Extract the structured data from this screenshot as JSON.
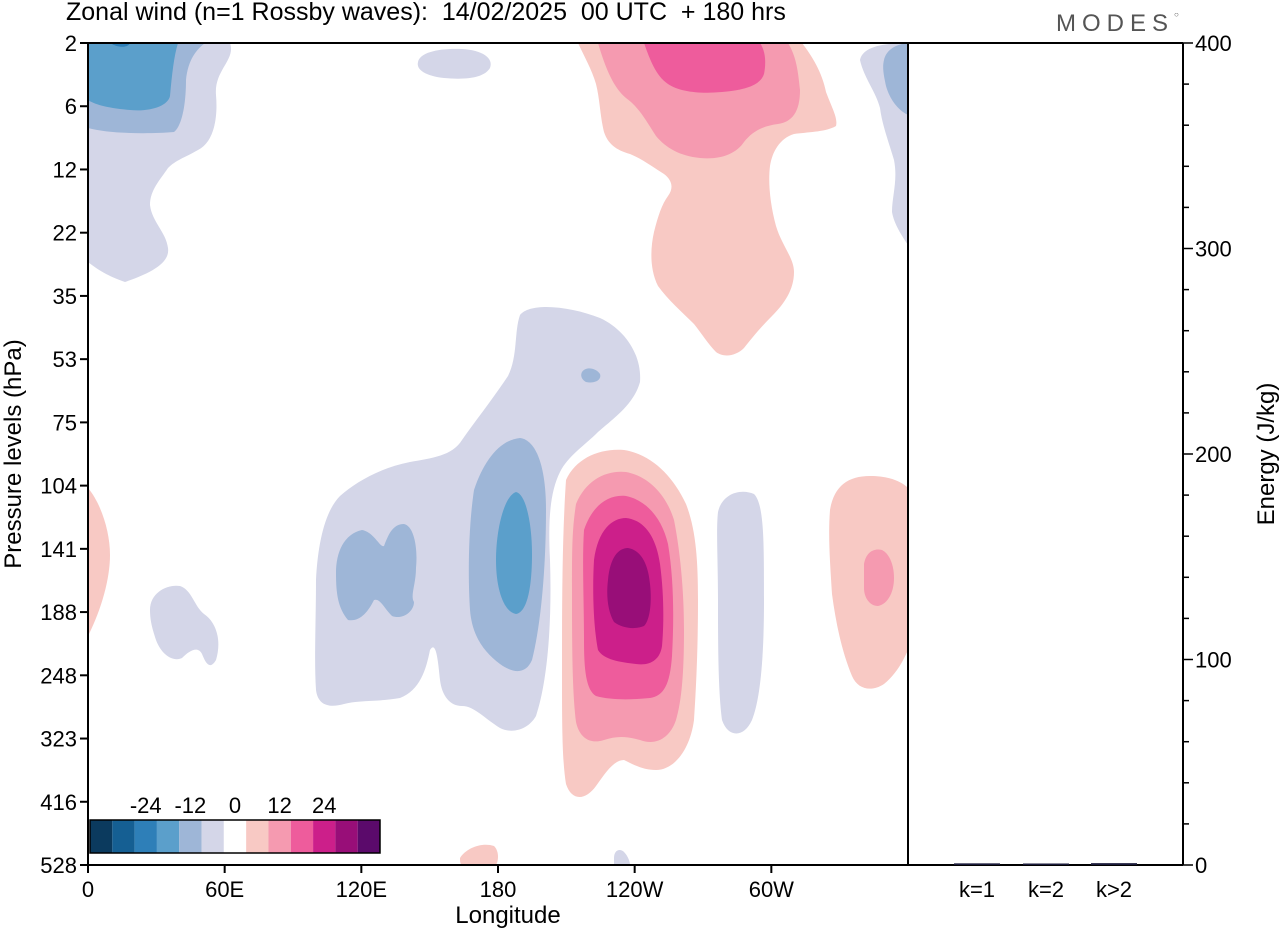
{
  "header": {
    "title": "Zonal wind (n=1 Rossby waves):  14/02/2025  00 UTC  + 180 hrs",
    "logo": "MODES"
  },
  "chart_data": [
    {
      "type": "heatmap",
      "title": "Zonal wind (n=1 Rossby waves):  14/02/2025  00 UTC  + 180 hrs",
      "xlabel": "Longitude",
      "ylabel": "Pressure levels (hPa)",
      "x_ticks": [
        "0",
        "60E",
        "120E",
        "180",
        "120W",
        "60W"
      ],
      "x_tick_lon": [
        0,
        60,
        120,
        180,
        240,
        300
      ],
      "xlim": [
        0,
        360
      ],
      "y_ticks": [
        "2",
        "6",
        "12",
        "22",
        "35",
        "53",
        "75",
        "104",
        "141",
        "188",
        "248",
        "323",
        "416",
        "528"
      ],
      "y_axis": "pressure levels, top to bottom (equally spaced ticks)",
      "colorbar": {
        "labels": [
          "-24",
          "-12",
          "0",
          "12",
          "24"
        ],
        "levels": [
          -24,
          -18,
          -12,
          -6,
          0,
          6,
          12,
          18,
          24
        ],
        "colors": [
          "#0b3a5e",
          "#155f93",
          "#2e7fb8",
          "#5b9fcb",
          "#9eb6d7",
          "#d4d6e8",
          "#ffffff",
          "#f8c9c4",
          "#f59ab0",
          "#ee5c9c",
          "#cc1f8a",
          "#980e78",
          "#5b0a6b"
        ],
        "position": "bottom-left"
      },
      "contours": [
        {
          "value": -6,
          "lon": 40,
          "level": 18.5,
          "note": "upper-left easterly, 2-25 hPa"
        },
        {
          "value": -12,
          "lon": 18,
          "level": 23.5,
          "note": "core, 2-6 hPa"
        },
        {
          "value": -18,
          "lon": 15,
          "level": 25.5
        },
        {
          "value": -6,
          "lon": 195,
          "level": 9,
          "note": "large negative region 35-323 hPa"
        },
        {
          "value": -12,
          "lon": 125,
          "level": 8.5
        },
        {
          "value": -12,
          "lon": 186,
          "level": 7.5
        },
        {
          "value": -18,
          "lon": 187,
          "level": 7
        },
        {
          "value": 6,
          "lon": 232,
          "level": 7.5
        },
        {
          "value": 12,
          "lon": 232,
          "level": 7.5
        },
        {
          "value": 18,
          "lon": 234,
          "level": 7.5
        },
        {
          "value": 24,
          "lon": 235,
          "level": 7.5
        },
        {
          "value": 30,
          "lon": 235,
          "level": 7.5,
          "note": "core maximum near 120W, 141-188 hPa"
        },
        {
          "value": 6,
          "lon": 262,
          "level": 23,
          "note": "upper-right westerly, 2-53 hPa"
        },
        {
          "value": 12,
          "lon": 262,
          "level": 24
        },
        {
          "value": 18,
          "lon": 270,
          "level": 25.5
        },
        {
          "value": 6,
          "lon": 344,
          "level": 6.5
        },
        {
          "value": 12,
          "lon": 349,
          "level": 7
        },
        {
          "value": -6,
          "lon": 285,
          "level": 6.5
        },
        {
          "value": -6,
          "lon": 55,
          "level": 8.5
        },
        {
          "value": -6,
          "lon": 155,
          "level": 21.5
        },
        {
          "value": 6,
          "lon": 2,
          "level": 7.5
        }
      ]
    },
    {
      "type": "bar",
      "ylabel": "Energy (J/kg)",
      "categories": [
        "k=1",
        "k=2",
        "k>2"
      ],
      "values": [
        0.8,
        0.5,
        0.9
      ],
      "ylim": [
        0,
        400
      ],
      "y_ticks": [
        "0",
        "100",
        "200",
        "300",
        "400"
      ]
    }
  ]
}
